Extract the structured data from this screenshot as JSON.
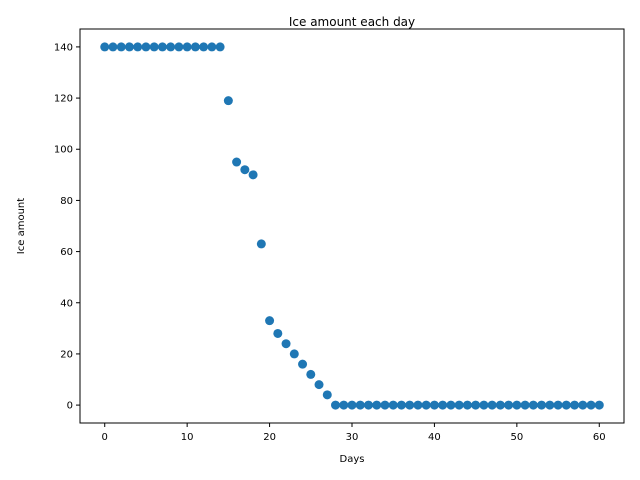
{
  "chart_data": {
    "type": "scatter",
    "title": "Ice amount each day",
    "xlabel": "Days",
    "ylabel": "Ice amount",
    "xlim": [
      -3,
      63
    ],
    "ylim": [
      -7,
      147
    ],
    "xticks": [
      0,
      10,
      20,
      30,
      40,
      50,
      60
    ],
    "yticks": [
      0,
      20,
      40,
      60,
      80,
      100,
      120,
      140
    ],
    "grid": false,
    "legend": "none",
    "marker_color": "#1f77b4",
    "series": [
      {
        "x": [
          0,
          1,
          2,
          3,
          4,
          5,
          6,
          7,
          8,
          9,
          10,
          11,
          12,
          13,
          14,
          15,
          16,
          17,
          18,
          19,
          20,
          21,
          22,
          23,
          24,
          25,
          26,
          27,
          28,
          29,
          30,
          31,
          32,
          33,
          34,
          35,
          36,
          37,
          38,
          39,
          40,
          41,
          42,
          43,
          44,
          45,
          46,
          47,
          48,
          49,
          50,
          51,
          52,
          53,
          54,
          55,
          56,
          57,
          58,
          59,
          60
        ],
        "y": [
          140,
          140,
          140,
          140,
          140,
          140,
          140,
          140,
          140,
          140,
          140,
          140,
          140,
          140,
          140,
          119,
          95,
          92,
          90,
          63,
          33,
          28,
          24,
          20,
          16,
          12,
          8,
          4,
          0,
          0,
          0,
          0,
          0,
          0,
          0,
          0,
          0,
          0,
          0,
          0,
          0,
          0,
          0,
          0,
          0,
          0,
          0,
          0,
          0,
          0,
          0,
          0,
          0,
          0,
          0,
          0,
          0,
          0,
          0,
          0,
          0
        ]
      }
    ]
  }
}
